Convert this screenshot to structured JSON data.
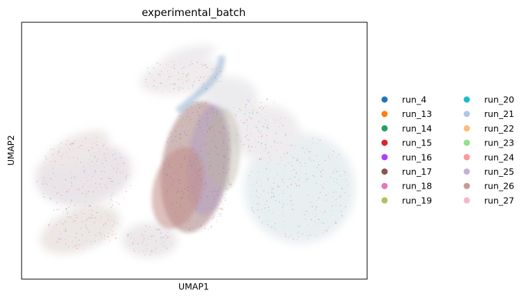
{
  "chart_data": {
    "type": "scatter",
    "title": "experimental_batch",
    "xlabel": "UMAP1",
    "ylabel": "UMAP2",
    "xticks": "none",
    "yticks": "none",
    "grid": false,
    "legend_placement": "right-outside",
    "legend_columns": 2,
    "series": [
      {
        "name": "run_4",
        "color": "#1f77b4"
      },
      {
        "name": "run_13",
        "color": "#ff7f0e"
      },
      {
        "name": "run_14",
        "color": "#279e68"
      },
      {
        "name": "run_15",
        "color": "#d62728"
      },
      {
        "name": "run_16",
        "color": "#aa40fc"
      },
      {
        "name": "run_17",
        "color": "#8c564b"
      },
      {
        "name": "run_18",
        "color": "#e377c2"
      },
      {
        "name": "run_19",
        "color": "#b5bd61"
      },
      {
        "name": "run_20",
        "color": "#17becf"
      },
      {
        "name": "run_21",
        "color": "#aec7e8"
      },
      {
        "name": "run_22",
        "color": "#ffbb78"
      },
      {
        "name": "run_23",
        "color": "#98df8a"
      },
      {
        "name": "run_24",
        "color": "#ff9896"
      },
      {
        "name": "run_25",
        "color": "#c5b0d5"
      },
      {
        "name": "run_26",
        "color": "#c49c94"
      },
      {
        "name": "run_27",
        "color": "#f7b6d2"
      }
    ]
  }
}
